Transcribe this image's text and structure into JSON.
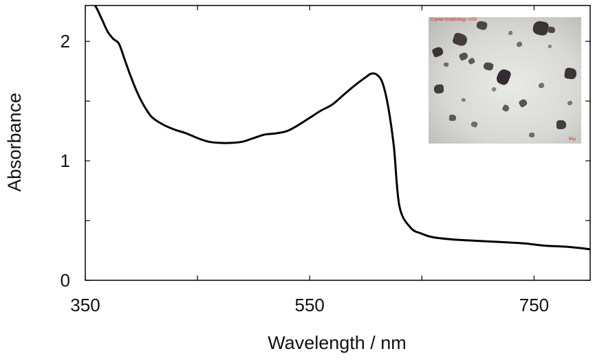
{
  "chart_data": {
    "type": "line",
    "title": "",
    "xlabel": "Wavelength / nm",
    "ylabel": "Absorbance",
    "xlim": [
      350,
      800
    ],
    "ylim": [
      0,
      2.3
    ],
    "x_ticks": [
      350,
      450,
      550,
      650,
      750
    ],
    "x_tick_labels": [
      "350",
      "",
      "550",
      "",
      "750"
    ],
    "y_ticks": [
      0,
      0.5,
      1,
      1.5,
      2
    ],
    "y_tick_labels": [
      "0",
      "",
      "1",
      "",
      "2"
    ],
    "grid": false,
    "legend": "none",
    "line_color": "#000000",
    "series": [
      {
        "x": [
          350,
          355,
          360,
          365,
          370,
          375,
          380,
          385,
          390,
          395,
          400,
          405,
          410,
          420,
          430,
          440,
          450,
          460,
          470,
          480,
          490,
          500,
          510,
          520,
          530,
          540,
          550,
          560,
          570,
          580,
          590,
          600,
          605,
          610,
          615,
          620,
          625,
          630,
          640,
          650,
          660,
          680,
          700,
          720,
          740,
          760,
          780,
          800
        ],
        "y": [
          2.45,
          2.35,
          2.28,
          2.18,
          2.08,
          2.02,
          1.98,
          1.85,
          1.72,
          1.6,
          1.5,
          1.42,
          1.36,
          1.3,
          1.26,
          1.23,
          1.19,
          1.16,
          1.15,
          1.15,
          1.16,
          1.19,
          1.22,
          1.23,
          1.25,
          1.3,
          1.36,
          1.42,
          1.47,
          1.55,
          1.63,
          1.7,
          1.73,
          1.72,
          1.65,
          1.45,
          1.12,
          0.62,
          0.44,
          0.39,
          0.36,
          0.34,
          0.33,
          0.32,
          0.31,
          0.29,
          0.28,
          0.26
        ]
      }
    ]
  },
  "inset": {
    "caption": "Crystal morphology ×100",
    "scale_label": "50μ",
    "background_color": "#d9d9d5",
    "particle_color": "#2a2226",
    "label_color": "#d21e1e"
  }
}
